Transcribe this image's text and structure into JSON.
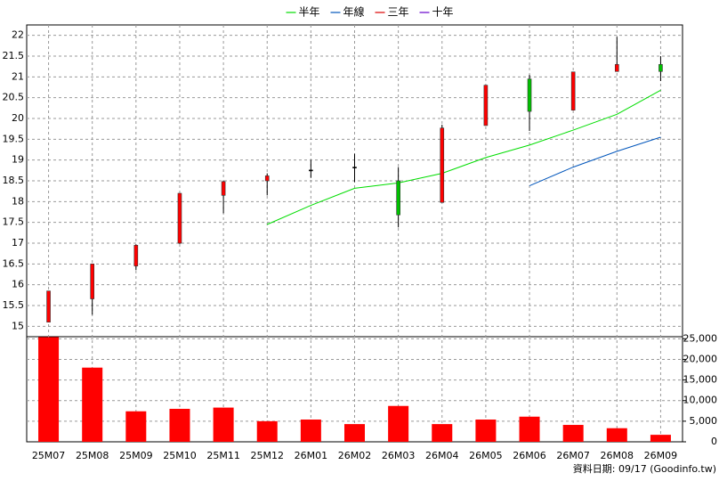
{
  "chart_data": {
    "type": "candlestick",
    "categories": [
      "25M07",
      "25M08",
      "25M09",
      "25M10",
      "25M11",
      "25M12",
      "26M01",
      "26M02",
      "26M03",
      "26M04",
      "26M05",
      "26M06",
      "26M07",
      "26M08",
      "26M09"
    ],
    "candles": {
      "open": [
        15.1,
        15.66,
        16.45,
        17.0,
        18.15,
        18.5,
        18.74,
        18.82,
        18.5,
        17.98,
        19.83,
        20.95,
        20.2,
        21.13,
        21.3
      ],
      "high": [
        15.85,
        16.5,
        16.97,
        18.2,
        18.5,
        18.68,
        19.0,
        19.15,
        18.83,
        19.85,
        20.8,
        21.05,
        21.12,
        21.96,
        21.5
      ],
      "low": [
        15.1,
        15.28,
        16.35,
        16.98,
        17.72,
        18.15,
        18.57,
        18.47,
        17.38,
        17.98,
        19.83,
        19.7,
        20.2,
        21.13,
        20.9
      ],
      "close": [
        15.85,
        16.5,
        16.95,
        18.2,
        18.48,
        18.62,
        18.76,
        18.83,
        17.68,
        19.77,
        20.8,
        20.17,
        21.12,
        21.3,
        21.13
      ],
      "up_color": "#ff0000",
      "down_color": "#00c000"
    },
    "series": [
      {
        "name": "半年",
        "color": "#00dd00",
        "values": [
          null,
          null,
          null,
          null,
          null,
          17.45,
          17.91,
          18.32,
          18.45,
          18.68,
          19.06,
          19.36,
          19.72,
          20.1,
          20.68
        ]
      },
      {
        "name": "年線",
        "color": "#0055bb",
        "values": [
          null,
          null,
          null,
          null,
          null,
          null,
          null,
          null,
          null,
          null,
          null,
          18.38,
          18.83,
          19.21,
          19.55
        ]
      },
      {
        "name": "三年",
        "color": "#dd0000",
        "values": [
          null,
          null,
          null,
          null,
          null,
          null,
          null,
          null,
          null,
          null,
          null,
          null,
          null,
          null,
          null
        ]
      },
      {
        "name": "十年",
        "color": "#6600cc",
        "values": [
          null,
          null,
          null,
          null,
          null,
          null,
          null,
          null,
          null,
          null,
          null,
          null,
          null,
          null,
          null
        ]
      }
    ],
    "ylim": [
      14.75,
      22.25
    ],
    "yticks": [
      15,
      15.5,
      16,
      16.5,
      17,
      17.5,
      18,
      18.5,
      19,
      19.5,
      20,
      20.5,
      21,
      21.5,
      22
    ],
    "volume": {
      "color": "#ff0000",
      "values": [
        25400,
        18000,
        7400,
        8000,
        8300,
        5000,
        5400,
        4300,
        8700,
        4300,
        5400,
        6100,
        4100,
        3300,
        1700
      ],
      "ylim": [
        0,
        25500
      ],
      "yticks": [
        0,
        {
          "value": 5000,
          "label": "5,000"
        },
        {
          "value": 10000,
          "label": "10,000"
        },
        {
          "value": 15000,
          "label": "15,000"
        },
        {
          "value": 20000,
          "label": "20,000"
        },
        {
          "value": 25000,
          "label": "25,000"
        }
      ]
    },
    "grid": true,
    "legend_position": "top",
    "footer": "資料日期: 09/17 (Goodinfo.tw)"
  }
}
